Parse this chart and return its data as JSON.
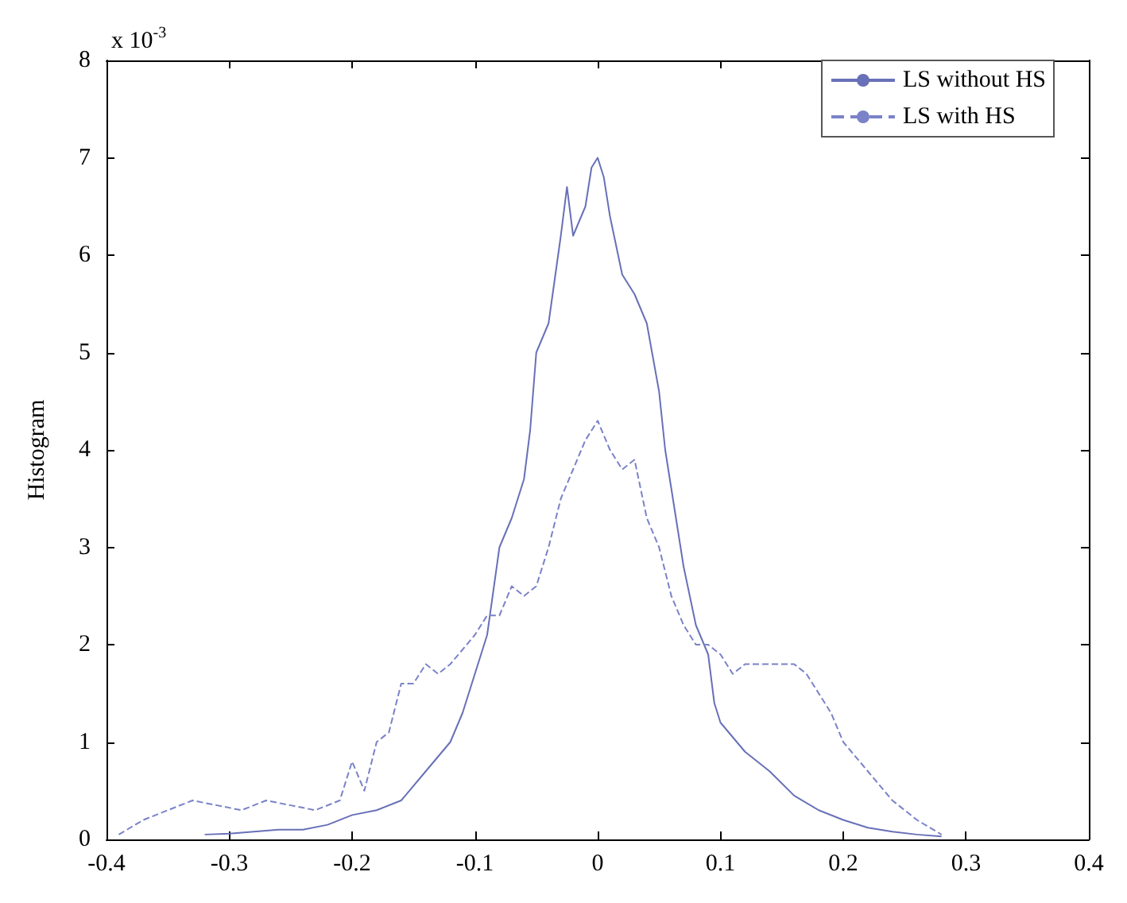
{
  "chart_data": {
    "type": "line",
    "ylabel": "Histogram",
    "annotations": [
      "x 10$^{-3}$"
    ],
    "xlim": [
      -0.4,
      0.4
    ],
    "xticks": [
      -0.4,
      -0.3,
      -0.2,
      -0.1,
      0,
      0.1,
      0.2,
      0.3,
      0.4
    ],
    "ylim": [
      0,
      8
    ],
    "yticks": [
      0,
      1,
      2,
      3,
      4,
      5,
      6,
      7,
      8
    ],
    "grid": false,
    "legend": "top right",
    "marker": "none",
    "series": [
      {
        "name": "LS without HS",
        "color": "#6870b8",
        "line_style": "solid",
        "x": [
          -0.32,
          -0.3,
          -0.28,
          -0.26,
          -0.24,
          -0.22,
          -0.2,
          -0.18,
          -0.16,
          -0.14,
          -0.12,
          -0.11,
          -0.1,
          -0.09,
          -0.08,
          -0.07,
          -0.06,
          -0.055,
          -0.05,
          -0.04,
          -0.03,
          -0.025,
          -0.02,
          -0.01,
          -0.005,
          0,
          0.005,
          0.01,
          0.02,
          0.03,
          0.04,
          0.05,
          0.055,
          0.06,
          0.07,
          0.08,
          0.09,
          0.095,
          0.1,
          0.12,
          0.14,
          0.16,
          0.18,
          0.2,
          0.22,
          0.24,
          0.26,
          0.28
        ],
        "values": [
          0.05,
          0.06,
          0.08,
          0.1,
          0.1,
          0.15,
          0.25,
          0.3,
          0.4,
          0.7,
          1.0,
          1.3,
          1.7,
          2.1,
          3.0,
          3.3,
          3.7,
          4.2,
          5.0,
          5.3,
          6.2,
          6.7,
          6.2,
          6.5,
          6.9,
          7.0,
          6.8,
          6.4,
          5.8,
          5.6,
          5.3,
          4.6,
          4.0,
          3.6,
          2.8,
          2.2,
          1.9,
          1.4,
          1.2,
          0.9,
          0.7,
          0.45,
          0.3,
          0.2,
          0.12,
          0.08,
          0.05,
          0.03
        ]
      },
      {
        "name": "LS with HS",
        "color": "#7a82c8",
        "line_style": "dashed",
        "x": [
          -0.39,
          -0.37,
          -0.35,
          -0.33,
          -0.31,
          -0.29,
          -0.27,
          -0.25,
          -0.23,
          -0.21,
          -0.2,
          -0.19,
          -0.18,
          -0.17,
          -0.16,
          -0.15,
          -0.14,
          -0.13,
          -0.12,
          -0.1,
          -0.09,
          -0.08,
          -0.07,
          -0.06,
          -0.05,
          -0.04,
          -0.03,
          -0.02,
          -0.01,
          0,
          0.01,
          0.02,
          0.03,
          0.04,
          0.05,
          0.06,
          0.07,
          0.08,
          0.09,
          0.1,
          0.11,
          0.12,
          0.14,
          0.16,
          0.17,
          0.18,
          0.19,
          0.2,
          0.22,
          0.24,
          0.26,
          0.28
        ],
        "values": [
          0.05,
          0.2,
          0.3,
          0.4,
          0.35,
          0.3,
          0.4,
          0.35,
          0.3,
          0.4,
          0.8,
          0.5,
          1.0,
          1.1,
          1.6,
          1.6,
          1.8,
          1.7,
          1.8,
          2.1,
          2.3,
          2.3,
          2.6,
          2.5,
          2.6,
          3.0,
          3.5,
          3.8,
          4.1,
          4.3,
          4.0,
          3.8,
          3.9,
          3.3,
          3.0,
          2.5,
          2.2,
          2.0,
          2.0,
          1.9,
          1.7,
          1.8,
          1.8,
          1.8,
          1.7,
          1.5,
          1.3,
          1.0,
          0.7,
          0.4,
          0.2,
          0.05
        ]
      }
    ]
  }
}
